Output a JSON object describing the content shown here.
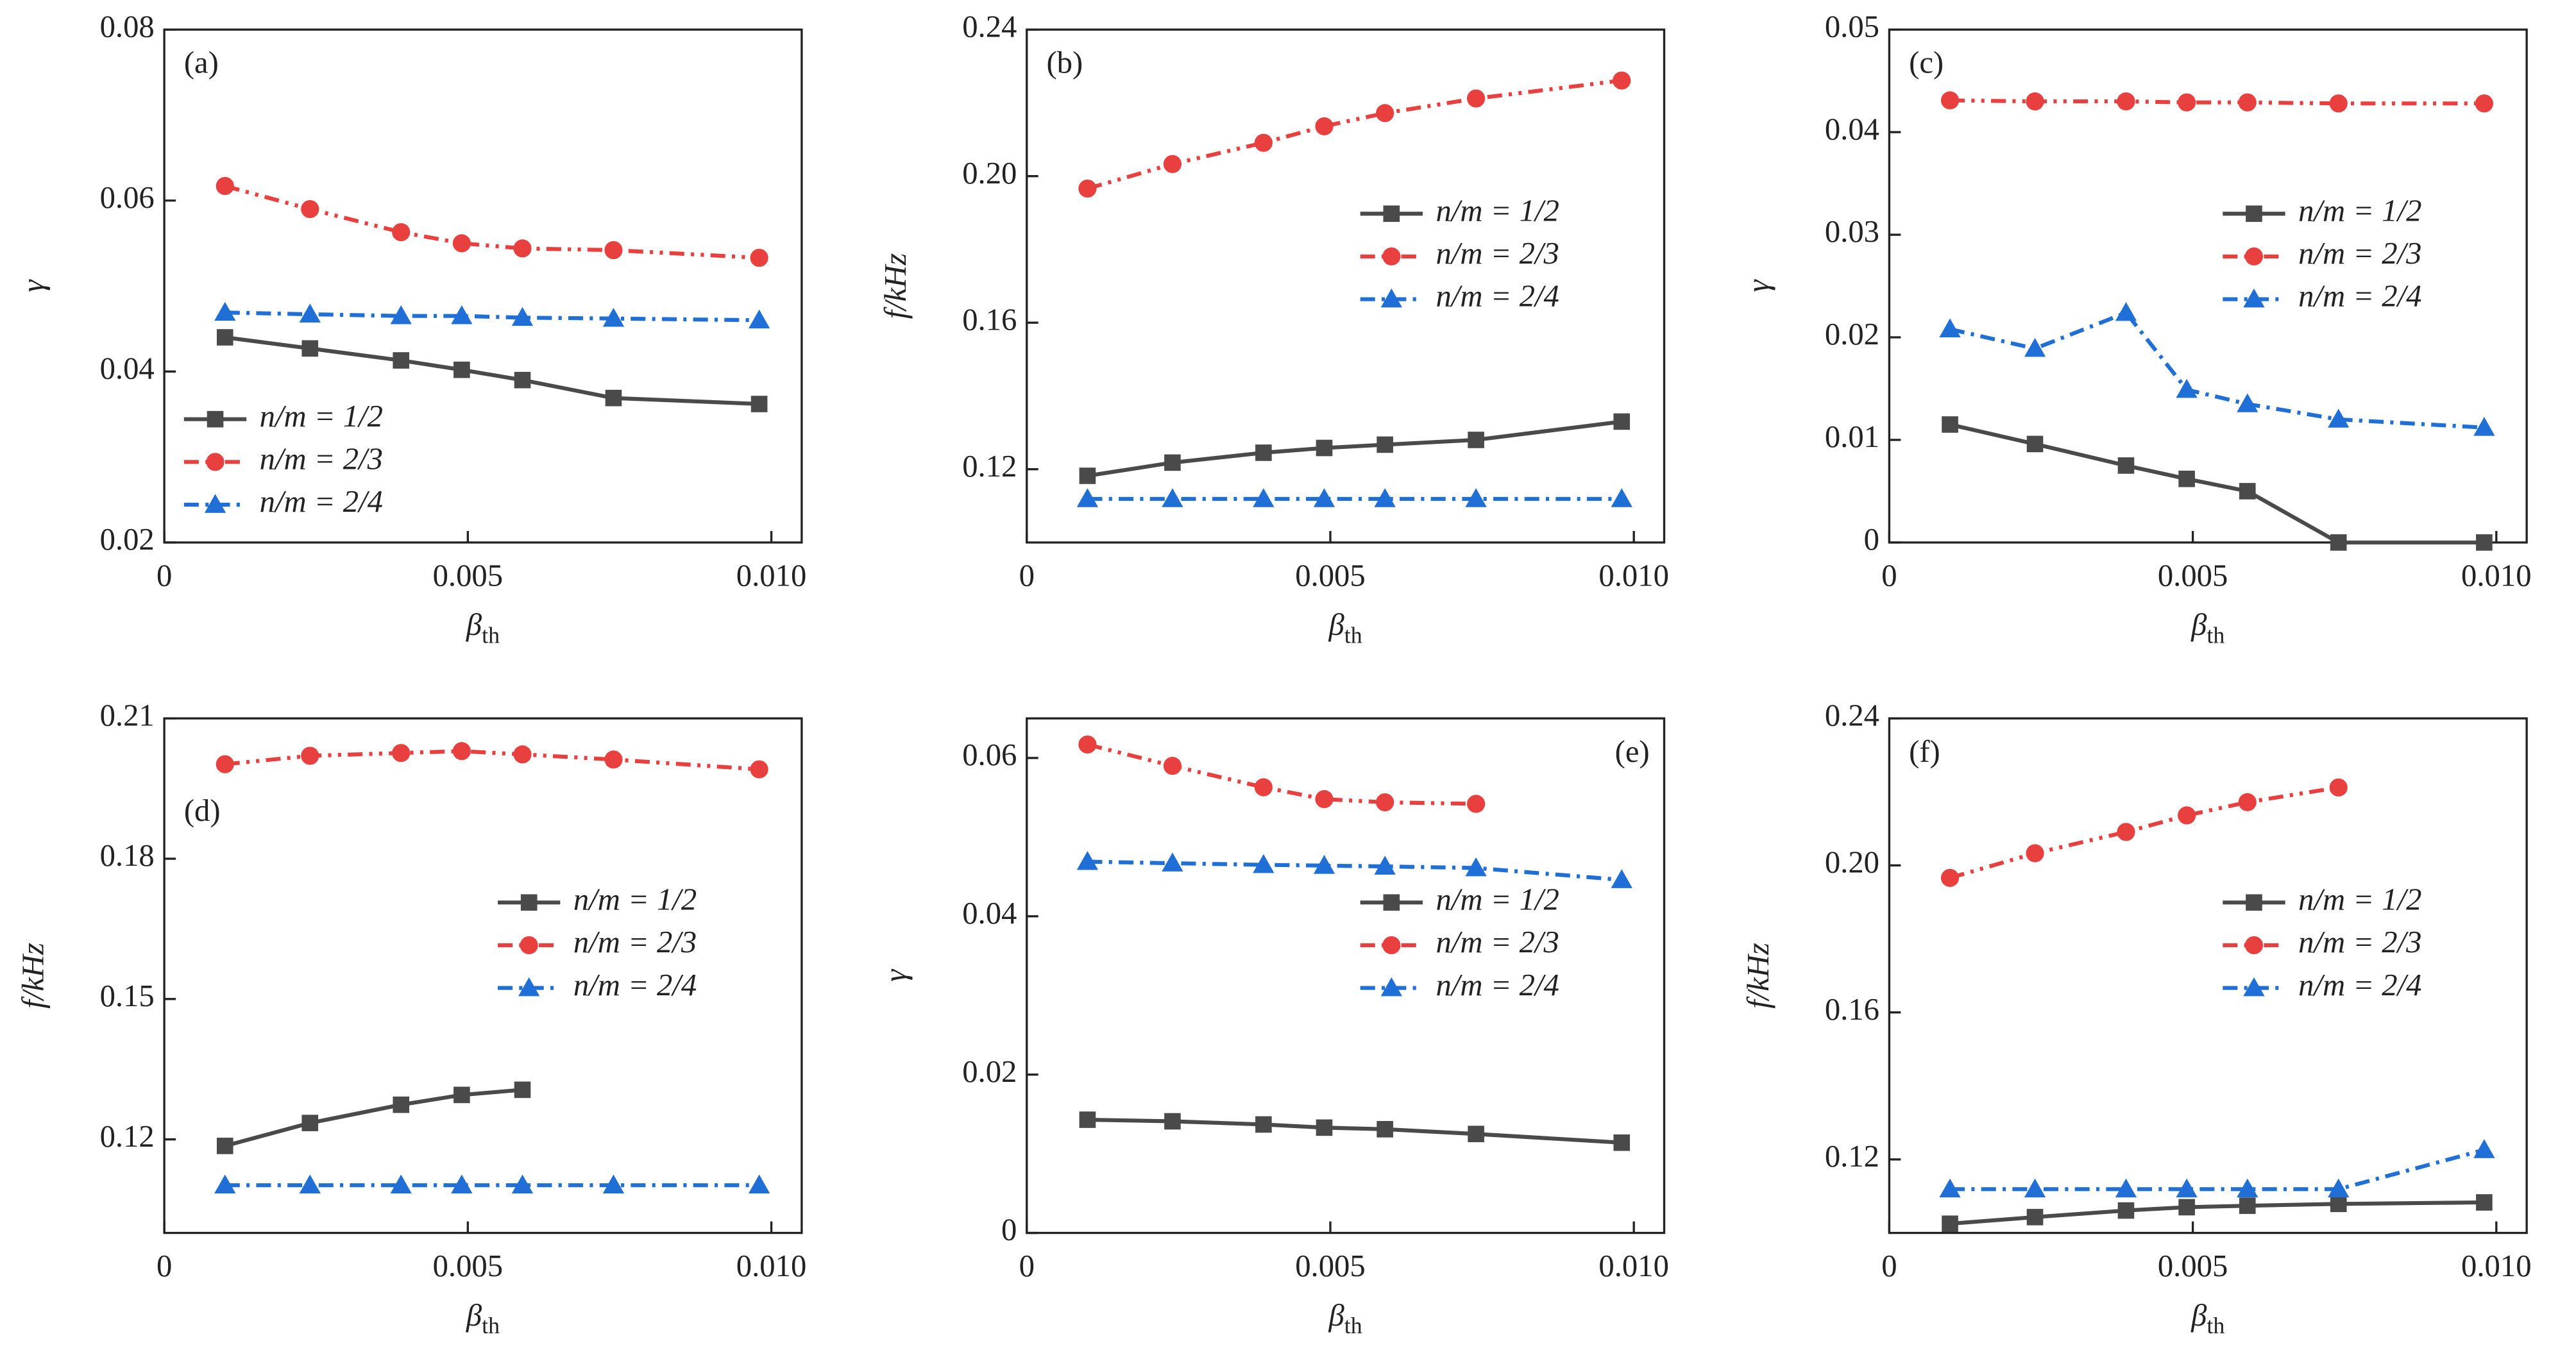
{
  "chart_data": [
    {
      "type": "line",
      "label": "(a)",
      "label_loc": "upper left",
      "ylabel": "γ",
      "xlabel": "β",
      "xlabel_sub": "th",
      "x": [
        0.001,
        0.0024,
        0.0039,
        0.0049,
        0.0059,
        0.0074,
        0.0098
      ],
      "xlim": [
        0,
        0.0105
      ],
      "xticks": [
        0,
        0.005,
        {
          "value": 0.01,
          "label": "0.010"
        }
      ],
      "ylim": [
        0.02,
        0.08
      ],
      "yticks": [
        0.02,
        0.04,
        0.06,
        0.08
      ],
      "legend": "lower left",
      "series": [
        {
          "name": "n/m = 1/2",
          "color": "#4a4a4a",
          "marker": "square",
          "linestyle": "solid",
          "values": [
            0.044,
            0.0427,
            0.0413,
            0.0402,
            0.039,
            0.0369,
            0.0362
          ]
        },
        {
          "name": "n/m = 2/3",
          "color": "#e8403f",
          "marker": "circle",
          "linestyle": "dashdotdot",
          "values": [
            0.0617,
            0.059,
            0.0563,
            0.055,
            0.0544,
            0.0542,
            0.0533
          ]
        },
        {
          "name": "n/m = 2/4",
          "color": "#1f6fd6",
          "marker": "triangle",
          "linestyle": "dashdot",
          "values": [
            0.0469,
            0.0467,
            0.0465,
            0.0465,
            0.0463,
            0.0462,
            0.046
          ]
        }
      ]
    },
    {
      "type": "line",
      "label": "(b)",
      "label_loc": "upper left",
      "ylabel": "f/kHz",
      "xlabel": "β",
      "xlabel_sub": "th",
      "x": [
        0.001,
        0.0024,
        0.0039,
        0.0049,
        0.0059,
        0.0074,
        0.0098
      ],
      "xlim": [
        0,
        0.0105
      ],
      "xticks": [
        0,
        0.005,
        {
          "value": 0.01,
          "label": "0.010"
        }
      ],
      "ylim": [
        0.1,
        0.24
      ],
      "yticks": [
        0.12,
        0.16,
        {
          "value": 0.2,
          "label": "0.20"
        },
        0.24
      ],
      "legend": "right",
      "series": [
        {
          "name": "n/m = 1/2",
          "color": "#4a4a4a",
          "marker": "square",
          "linestyle": "solid",
          "values": [
            0.1182,
            0.1218,
            0.1245,
            0.1258,
            0.1267,
            0.128,
            0.133
          ]
        },
        {
          "name": "n/m = 2/3",
          "color": "#e8403f",
          "marker": "circle",
          "linestyle": "dashdotdot",
          "values": [
            0.1966,
            0.2033,
            0.2091,
            0.2136,
            0.2172,
            0.2212,
            0.2261
          ]
        },
        {
          "name": "n/m = 2/4",
          "color": "#1f6fd6",
          "marker": "triangle",
          "linestyle": "dashdot",
          "values": [
            0.1119,
            0.1119,
            0.1119,
            0.1119,
            0.1119,
            0.1119,
            0.1119
          ]
        }
      ]
    },
    {
      "type": "line",
      "label": "(c)",
      "label_loc": "upper left",
      "ylabel": "γ",
      "xlabel": "β",
      "xlabel_sub": "th",
      "x": [
        0.001,
        0.0024,
        0.0039,
        0.0049,
        0.0059,
        0.0074,
        0.0098
      ],
      "xlim": [
        0,
        0.0105
      ],
      "xticks": [
        0,
        0.005,
        {
          "value": 0.01,
          "label": "0.010"
        }
      ],
      "ylim": [
        0,
        0.05
      ],
      "yticks": [
        0,
        0.01,
        0.02,
        0.03,
        0.04,
        0.05
      ],
      "legend": "right",
      "series": [
        {
          "name": "n/m = 1/2",
          "color": "#4a4a4a",
          "marker": "square",
          "linestyle": "solid",
          "values": [
            0.0115,
            0.0096,
            0.0075,
            0.0062,
            0.005,
            0,
            0
          ]
        },
        {
          "name": "n/m = 2/3",
          "color": "#e8403f",
          "marker": "circle",
          "linestyle": "dashdotdot",
          "values": [
            0.0431,
            0.043,
            0.043,
            0.0429,
            0.0429,
            0.0428,
            0.0428
          ]
        },
        {
          "name": "n/m = 2/4",
          "color": "#1f6fd6",
          "marker": "triangle",
          "linestyle": "dashdot",
          "values": [
            0.0208,
            0.0189,
            0.0224,
            0.0149,
            0.0135,
            0.012,
            0.0112
          ]
        }
      ]
    },
    {
      "type": "line",
      "label": "(d)",
      "label_loc": "left",
      "ylabel": "f/kHz",
      "xlabel": "β",
      "xlabel_sub": "th",
      "x": [
        0.001,
        0.0024,
        0.0039,
        0.0049,
        0.0059,
        0.0074,
        0.0098
      ],
      "xlim": [
        0,
        0.0105
      ],
      "xticks": [
        0,
        0.005,
        {
          "value": 0.01,
          "label": "0.010"
        }
      ],
      "ylim": [
        0.1,
        0.21
      ],
      "yticks": [
        0.12,
        0.15,
        0.18,
        0.21
      ],
      "legend": "right",
      "series": [
        {
          "name": "n/m = 1/2",
          "color": "#4a4a4a",
          "marker": "square",
          "linestyle": "solid",
          "values": [
            0.1186,
            0.1235,
            0.1274,
            0.1295,
            0.1306,
            null,
            null
          ]
        },
        {
          "name": "n/m = 2/3",
          "color": "#e8403f",
          "marker": "circle",
          "linestyle": "dashdotdot",
          "values": [
            0.2002,
            0.202,
            0.2026,
            0.203,
            0.2023,
            0.2012,
            0.1991
          ]
        },
        {
          "name": "n/m = 2/4",
          "color": "#1f6fd6",
          "marker": "triangle",
          "linestyle": "dashdot",
          "values": [
            0.1102,
            0.1102,
            0.1102,
            0.1102,
            0.1102,
            0.1102,
            0.1102
          ]
        }
      ]
    },
    {
      "type": "line",
      "label": "(e)",
      "label_loc": "upper right",
      "ylabel": "γ",
      "xlabel": "β",
      "xlabel_sub": "th",
      "x": [
        0.001,
        0.0024,
        0.0039,
        0.0049,
        0.0059,
        0.0074,
        0.0098
      ],
      "xlim": [
        0,
        0.0105
      ],
      "xticks": [
        0,
        0.005,
        {
          "value": 0.01,
          "label": "0.010"
        }
      ],
      "ylim": [
        0,
        0.065
      ],
      "yticks": [
        0,
        0.02,
        0.04,
        0.06
      ],
      "legend": "right",
      "series": [
        {
          "name": "n/m = 1/2",
          "color": "#4a4a4a",
          "marker": "square",
          "linestyle": "solid",
          "values": [
            0.0143,
            0.0141,
            0.0137,
            0.0133,
            0.0131,
            0.0125,
            0.0114
          ]
        },
        {
          "name": "n/m = 2/3",
          "color": "#e8403f",
          "marker": "circle",
          "linestyle": "dashdotdot",
          "values": [
            0.0617,
            0.059,
            0.0563,
            0.0548,
            0.0544,
            0.0542,
            null
          ]
        },
        {
          "name": "n/m = 2/4",
          "color": "#1f6fd6",
          "marker": "triangle",
          "linestyle": "dashdot",
          "values": [
            0.0469,
            0.0467,
            0.0465,
            0.0464,
            0.0463,
            0.0461,
            0.0446
          ]
        }
      ]
    },
    {
      "type": "line",
      "label": "(f)",
      "label_loc": "upper left",
      "ylabel": "f/kHz",
      "xlabel": "β",
      "xlabel_sub": "th",
      "x": [
        0.001,
        0.0024,
        0.0039,
        0.0049,
        0.0059,
        0.0074,
        0.0098
      ],
      "xlim": [
        0,
        0.0105
      ],
      "xticks": [
        0,
        0.005,
        {
          "value": 0.01,
          "label": "0.010"
        }
      ],
      "ylim": [
        0.1,
        0.24
      ],
      "yticks": [
        0.12,
        0.16,
        {
          "value": 0.2,
          "label": "0.20"
        },
        0.24
      ],
      "legend": "right",
      "series": [
        {
          "name": "n/m = 1/2",
          "color": "#4a4a4a",
          "marker": "square",
          "linestyle": "solid",
          "values": [
            0.1025,
            0.1043,
            0.1061,
            0.107,
            0.1074,
            0.1079,
            0.1083
          ]
        },
        {
          "name": "n/m = 2/3",
          "color": "#e8403f",
          "marker": "circle",
          "linestyle": "dashdotdot",
          "values": [
            0.1966,
            0.2033,
            0.2091,
            0.2136,
            0.2172,
            0.2212,
            null
          ]
        },
        {
          "name": "n/m = 2/4",
          "color": "#1f6fd6",
          "marker": "triangle",
          "linestyle": "dashdot",
          "values": [
            0.1119,
            0.1119,
            0.1119,
            0.1119,
            0.1119,
            0.1119,
            0.1226
          ]
        }
      ]
    }
  ]
}
